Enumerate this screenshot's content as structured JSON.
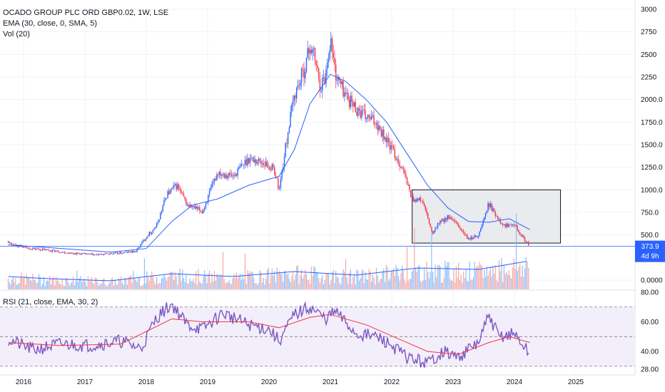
{
  "chart_data": {
    "type": "candlestick",
    "symbol_line": "OCADO GROUP PLC ORD GBP0.02, 1W, LSE",
    "indicators": [
      "EMA (30, close, 0, SMA, 5)",
      "Vol (20)"
    ],
    "rsi_label": "RSI (21, close, EMA, 30, 2)",
    "price_ticks": [
      "3000",
      "2750",
      "2500",
      "2250",
      "2000.0",
      "1750.0",
      "1500.0",
      "1250.0",
      "1000.0",
      "750.0",
      "500.0",
      "0.0000"
    ],
    "rsi_ticks": [
      "80.00",
      "60.00",
      "40.00",
      "28.00"
    ],
    "x_ticks": [
      "2016",
      "2017",
      "2018",
      "2019",
      "2020",
      "2021",
      "2022",
      "2023",
      "2024",
      "2025"
    ],
    "last_price": "373.9",
    "countdown": "4d 9h",
    "colors": {
      "up": "#2962ff",
      "down": "#f23645",
      "ema": "#2962ff",
      "rsi": "#7e57c2",
      "rsi_ma": "#f23645",
      "rect_fill": "#e9ebef"
    },
    "price_series": [
      [
        "2015-10",
        420
      ],
      [
        "2016-01",
        360
      ],
      [
        "2016-06",
        330
      ],
      [
        "2016-10",
        300
      ],
      [
        "2017-03",
        280
      ],
      [
        "2017-08",
        300
      ],
      [
        "2017-11",
        320
      ],
      [
        "2018-01",
        480
      ],
      [
        "2018-03",
        600
      ],
      [
        "2018-05",
        950
      ],
      [
        "2018-07",
        1050
      ],
      [
        "2018-09",
        830
      ],
      [
        "2018-12",
        760
      ],
      [
        "2019-03",
        1200
      ],
      [
        "2019-06",
        1150
      ],
      [
        "2019-09",
        1350
      ],
      [
        "2019-12",
        1300
      ],
      [
        "2020-02",
        1220
      ],
      [
        "2020-03",
        1000
      ],
      [
        "2020-05",
        1750
      ],
      [
        "2020-06",
        2050
      ],
      [
        "2020-08",
        2350
      ],
      [
        "2020-09",
        2600
      ],
      [
        "2020-10",
        2450
      ],
      [
        "2020-11",
        2150
      ],
      [
        "2020-12",
        2250
      ],
      [
        "2021-01",
        2680
      ],
      [
        "2021-02",
        2280
      ],
      [
        "2021-04",
        2050
      ],
      [
        "2021-06",
        1900
      ],
      [
        "2021-08",
        1800
      ],
      [
        "2021-10",
        1750
      ],
      [
        "2021-12",
        1550
      ],
      [
        "2022-03",
        1250
      ],
      [
        "2022-05",
        900
      ],
      [
        "2022-07",
        880
      ],
      [
        "2022-09",
        500
      ],
      [
        "2022-10",
        620
      ],
      [
        "2022-12",
        700
      ],
      [
        "2023-02",
        600
      ],
      [
        "2023-04",
        450
      ],
      [
        "2023-06",
        500
      ],
      [
        "2023-08",
        850
      ],
      [
        "2023-09",
        750
      ],
      [
        "2023-11",
        600
      ],
      [
        "2024-01",
        640
      ],
      [
        "2024-02",
        520
      ],
      [
        "2024-04",
        373.9
      ]
    ],
    "ema_series": [
      [
        "2015-10",
        390
      ],
      [
        "2016-06",
        360
      ],
      [
        "2017-06",
        310
      ],
      [
        "2018-01",
        350
      ],
      [
        "2018-06",
        650
      ],
      [
        "2018-10",
        830
      ],
      [
        "2019-03",
        900
      ],
      [
        "2019-09",
        1050
      ],
      [
        "2020-03",
        1150
      ],
      [
        "2020-06",
        1450
      ],
      [
        "2020-09",
        1950
      ],
      [
        "2021-01",
        2280
      ],
      [
        "2021-04",
        2200
      ],
      [
        "2021-08",
        2000
      ],
      [
        "2021-12",
        1750
      ],
      [
        "2022-04",
        1400
      ],
      [
        "2022-08",
        1050
      ],
      [
        "2022-12",
        800
      ],
      [
        "2023-04",
        650
      ],
      [
        "2023-08",
        640
      ],
      [
        "2023-12",
        680
      ],
      [
        "2024-04",
        560
      ]
    ],
    "rsi_series": [
      [
        "2015-10",
        48
      ],
      [
        "2016-03",
        41
      ],
      [
        "2016-08",
        45
      ],
      [
        "2017-02",
        44
      ],
      [
        "2017-08",
        47
      ],
      [
        "2017-12",
        42
      ],
      [
        "2018-03",
        63
      ],
      [
        "2018-06",
        72
      ],
      [
        "2018-09",
        58
      ],
      [
        "2018-12",
        55
      ],
      [
        "2019-04",
        66
      ],
      [
        "2019-09",
        58
      ],
      [
        "2020-01",
        55
      ],
      [
        "2020-03",
        47
      ],
      [
        "2020-06",
        65
      ],
      [
        "2020-09",
        70
      ],
      [
        "2020-12",
        62
      ],
      [
        "2021-02",
        67
      ],
      [
        "2021-06",
        52
      ],
      [
        "2021-10",
        50
      ],
      [
        "2022-01",
        44
      ],
      [
        "2022-04",
        36
      ],
      [
        "2022-08",
        32
      ],
      [
        "2022-11",
        40
      ],
      [
        "2023-02",
        36
      ],
      [
        "2023-06",
        46
      ],
      [
        "2023-08",
        64
      ],
      [
        "2023-10",
        50
      ],
      [
        "2024-01",
        52
      ],
      [
        "2024-04",
        38
      ]
    ],
    "rsi_ma_series": [
      [
        "2015-10",
        46
      ],
      [
        "2016-08",
        44
      ],
      [
        "2017-08",
        45
      ],
      [
        "2018-06",
        62
      ],
      [
        "2018-12",
        60
      ],
      [
        "2019-09",
        60
      ],
      [
        "2020-03",
        56
      ],
      [
        "2020-09",
        63
      ],
      [
        "2021-01",
        65
      ],
      [
        "2021-08",
        58
      ],
      [
        "2022-02",
        49
      ],
      [
        "2022-08",
        40
      ],
      [
        "2023-02",
        38
      ],
      [
        "2023-08",
        46
      ],
      [
        "2023-12",
        50
      ],
      [
        "2024-04",
        46
      ]
    ],
    "volume_profile": [
      [
        "2015-10",
        18
      ],
      [
        "2016-06",
        15
      ],
      [
        "2017-06",
        12
      ],
      [
        "2018-06",
        22
      ],
      [
        "2019-06",
        18
      ],
      [
        "2020-06",
        25
      ],
      [
        "2021-06",
        20
      ],
      [
        "2022-06",
        30
      ],
      [
        "2023-06",
        28
      ],
      [
        "2024-04",
        40
      ]
    ],
    "highlight_box": {
      "from": "2022-05",
      "to": "2024-10",
      "y_top": 1000,
      "y_bottom": 410
    }
  }
}
